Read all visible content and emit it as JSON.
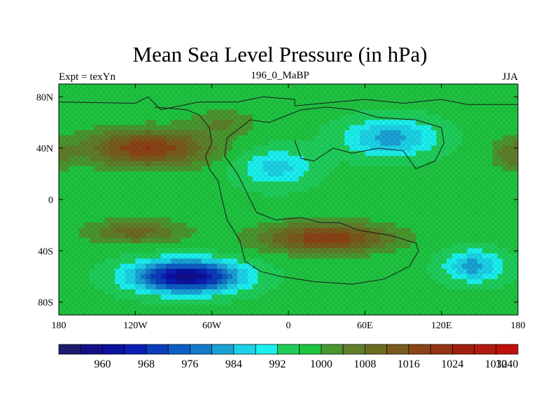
{
  "title": "Mean Sea Level Pressure (in hPa)",
  "subtitle_left": "Expt = texYn",
  "subtitle_center": "196_0_MaBP",
  "subtitle_right": "JJA",
  "x_axis": {
    "range": [
      -180,
      180
    ],
    "tick_values": [
      -180,
      -120,
      -60,
      0,
      60,
      120,
      180
    ],
    "tick_labels": [
      "180",
      "120W",
      "60W",
      "0",
      "60E",
      "120E",
      "180"
    ]
  },
  "y_axis": {
    "range": [
      -90,
      90
    ],
    "tick_values": [
      80,
      40,
      0,
      -40,
      -80
    ],
    "tick_labels": [
      "80N",
      "40N",
      "0",
      "40S",
      "80S"
    ]
  },
  "colorbar": {
    "colors": [
      "#1e1a6e",
      "#120f88",
      "#0a129e",
      "#0b1eb3",
      "#0b3cbb",
      "#0d5ec2",
      "#127ac8",
      "#1aa2d4",
      "#1cd2e6",
      "#1bf0ee",
      "#1fce5a",
      "#1fc441",
      "#4a962f",
      "#5e7e2a",
      "#6b6a21",
      "#7a5a1c",
      "#8a4416",
      "#953312",
      "#a0200e",
      "#b01a0e",
      "#c0100c"
    ],
    "labels": [
      "960",
      "968",
      "976",
      "984",
      "992",
      "1000",
      "1008",
      "1016",
      "1024",
      "1032",
      "1040"
    ],
    "label_boundary_index": [
      2,
      4,
      6,
      8,
      10,
      12,
      14,
      16,
      18,
      20,
      21
    ]
  },
  "chart_data": {
    "type": "heatmap",
    "title": "Mean Sea Level Pressure (in hPa)",
    "units": "hPa",
    "lon_range": [
      -180,
      180
    ],
    "lat_range": [
      -90,
      90
    ],
    "levels": [
      956,
      960,
      964,
      968,
      972,
      976,
      980,
      984,
      988,
      992,
      996,
      1000,
      1004,
      1008,
      1012,
      1016,
      1020,
      1024,
      1028,
      1032,
      1036,
      1040
    ],
    "pressure_centers": [
      {
        "lon": -80,
        "lat": -60,
        "value": 962,
        "sx": 40,
        "sy": 12
      },
      {
        "lon": 145,
        "lat": -52,
        "value": 986,
        "sx": 22,
        "sy": 12
      },
      {
        "lon": 80,
        "lat": 48,
        "value": 986,
        "sx": 35,
        "sy": 14
      },
      {
        "lon": -10,
        "lat": 25,
        "value": 990,
        "sx": 28,
        "sy": 14
      },
      {
        "lon": -110,
        "lat": 40,
        "value": 1024,
        "sx": 48,
        "sy": 14
      },
      {
        "lon": 30,
        "lat": -30,
        "value": 1024,
        "sx": 50,
        "sy": 11
      },
      {
        "lon": -120,
        "lat": -25,
        "value": 1014,
        "sx": 38,
        "sy": 9
      },
      {
        "lon": 175,
        "lat": 35,
        "value": 1010,
        "sx": 15,
        "sy": 12
      },
      {
        "lon": -50,
        "lat": 60,
        "value": 1008,
        "sx": 25,
        "sy": 10
      }
    ],
    "background_value": 1001
  }
}
